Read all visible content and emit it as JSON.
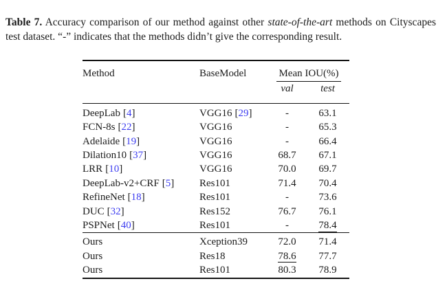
{
  "caption": {
    "label": "Table 7.",
    "body_1": " Accuracy comparison of our method against other ",
    "italic": "state-of-the-art",
    "body_2": " methods on Cityscapes test dataset. “-” indicates that the methods didn’t give the corresponding result."
  },
  "table": {
    "header": {
      "method": "Method",
      "basemodel": "BaseModel",
      "group": "Mean IOU(%)",
      "sub_val": "val",
      "sub_test": "test"
    },
    "rows": [
      {
        "method": "DeepLab",
        "cite": "4",
        "basemodel": "VGG16",
        "basemodel_cite": "29",
        "val": "-",
        "test": "63.1"
      },
      {
        "method": "FCN-8s",
        "cite": "22",
        "basemodel": "VGG16",
        "val": "-",
        "test": "65.3"
      },
      {
        "method": "Adelaide",
        "cite": "19",
        "basemodel": "VGG16",
        "val": "-",
        "test": "66.4"
      },
      {
        "method": "Dilation10",
        "cite": "37",
        "basemodel": "VGG16",
        "val": "68.7",
        "test": "67.1"
      },
      {
        "method": "LRR",
        "cite": "10",
        "basemodel": "VGG16",
        "val": "70.0",
        "test": "69.7"
      },
      {
        "method": "DeepLab-v2+CRF",
        "cite": "5",
        "basemodel": "Res101",
        "val": "71.4",
        "test": "70.4"
      },
      {
        "method": "RefineNet",
        "cite": "18",
        "basemodel": "Res101",
        "val": "-",
        "test": "73.6"
      },
      {
        "method": "DUC",
        "cite": "32",
        "basemodel": "Res152",
        "val": "76.7",
        "test": "76.1"
      },
      {
        "method": "PSPNet",
        "cite": "40",
        "basemodel": "Res101",
        "val": "-",
        "test": "78.4"
      }
    ],
    "ours_rows": [
      {
        "method": "Ours",
        "basemodel": "Xception39",
        "val": "72.0",
        "test": "71.4"
      },
      {
        "method": "Ours",
        "basemodel": "Res18",
        "val": "78.6",
        "test": "77.7"
      },
      {
        "method": "Ours",
        "basemodel": "Res101",
        "val": "80.3",
        "test": "78.9"
      }
    ]
  },
  "colors": {
    "text": "#1a1a1a",
    "citation_blue": "#3c3cf0",
    "rule": "#111111",
    "background": "#ffffff"
  }
}
